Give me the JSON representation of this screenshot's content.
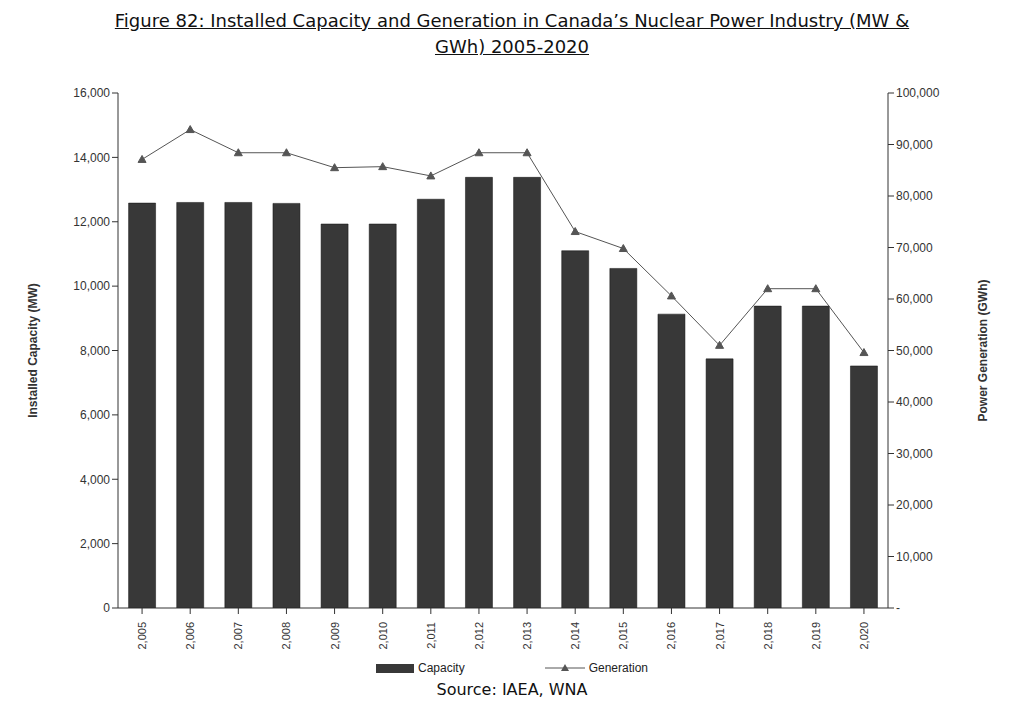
{
  "chart_data": {
    "type": "bar",
    "title": "Figure 82: Installed Capacity and Generation in Canada’s Nuclear Power Industry (MW & GWh) 2005-2020",
    "source": "Source: IAEA, WNA",
    "categories": [
      "2,005",
      "2,006",
      "2,007",
      "2,008",
      "2,009",
      "2,010",
      "2,011",
      "2,012",
      "2,013",
      "2,014",
      "2,015",
      "2,016",
      "2,017",
      "2,018",
      "2,019",
      "2,020"
    ],
    "y_label": "Installed Capacity (MW)",
    "y2_label": "Power Generation (GWh)",
    "ylim": [
      0,
      16000
    ],
    "yticks": [
      0,
      {
        "value": 2000,
        "label": "2,000"
      },
      {
        "value": 4000,
        "label": "4,000"
      },
      {
        "value": 6000,
        "label": "6,000"
      },
      {
        "value": 8000,
        "label": "8,000"
      },
      {
        "value": 10000,
        "label": "10,000"
      },
      {
        "value": 12000,
        "label": "12,000"
      },
      {
        "value": 14000,
        "label": "14,000"
      },
      {
        "value": 16000,
        "label": "16,000"
      }
    ],
    "y2lim": [
      0,
      100000
    ],
    "y2ticks": [
      {
        "value": 0,
        "label": "-"
      },
      {
        "value": 10000,
        "label": "10,000"
      },
      {
        "value": 20000,
        "label": "20,000"
      },
      {
        "value": 30000,
        "label": "30,000"
      },
      {
        "value": 40000,
        "label": "40,000"
      },
      {
        "value": 50000,
        "label": "50,000"
      },
      {
        "value": 60000,
        "label": "60,000"
      },
      {
        "value": 70000,
        "label": "70,000"
      },
      {
        "value": 80000,
        "label": "80,000"
      },
      {
        "value": 90000,
        "label": "90,000"
      },
      {
        "value": 100000,
        "label": "100,000"
      }
    ],
    "grid": false,
    "legend": "bottom",
    "series": [
      {
        "name": "Capacity",
        "type": "bar",
        "color": "#383838",
        "values": [
          12580,
          12600,
          12600,
          12570,
          11930,
          11930,
          12700,
          13380,
          13380,
          11100,
          10550,
          9130,
          7740,
          9380,
          9380,
          7520
        ]
      },
      {
        "name": "Generation",
        "type": "line",
        "axis": "y2",
        "color": "#555555",
        "marker": "triangle",
        "values": [
          87100,
          92900,
          88400,
          88400,
          85500,
          85700,
          83900,
          88400,
          88400,
          73100,
          69800,
          60600,
          51000,
          62000,
          62000,
          49600
        ]
      }
    ]
  }
}
